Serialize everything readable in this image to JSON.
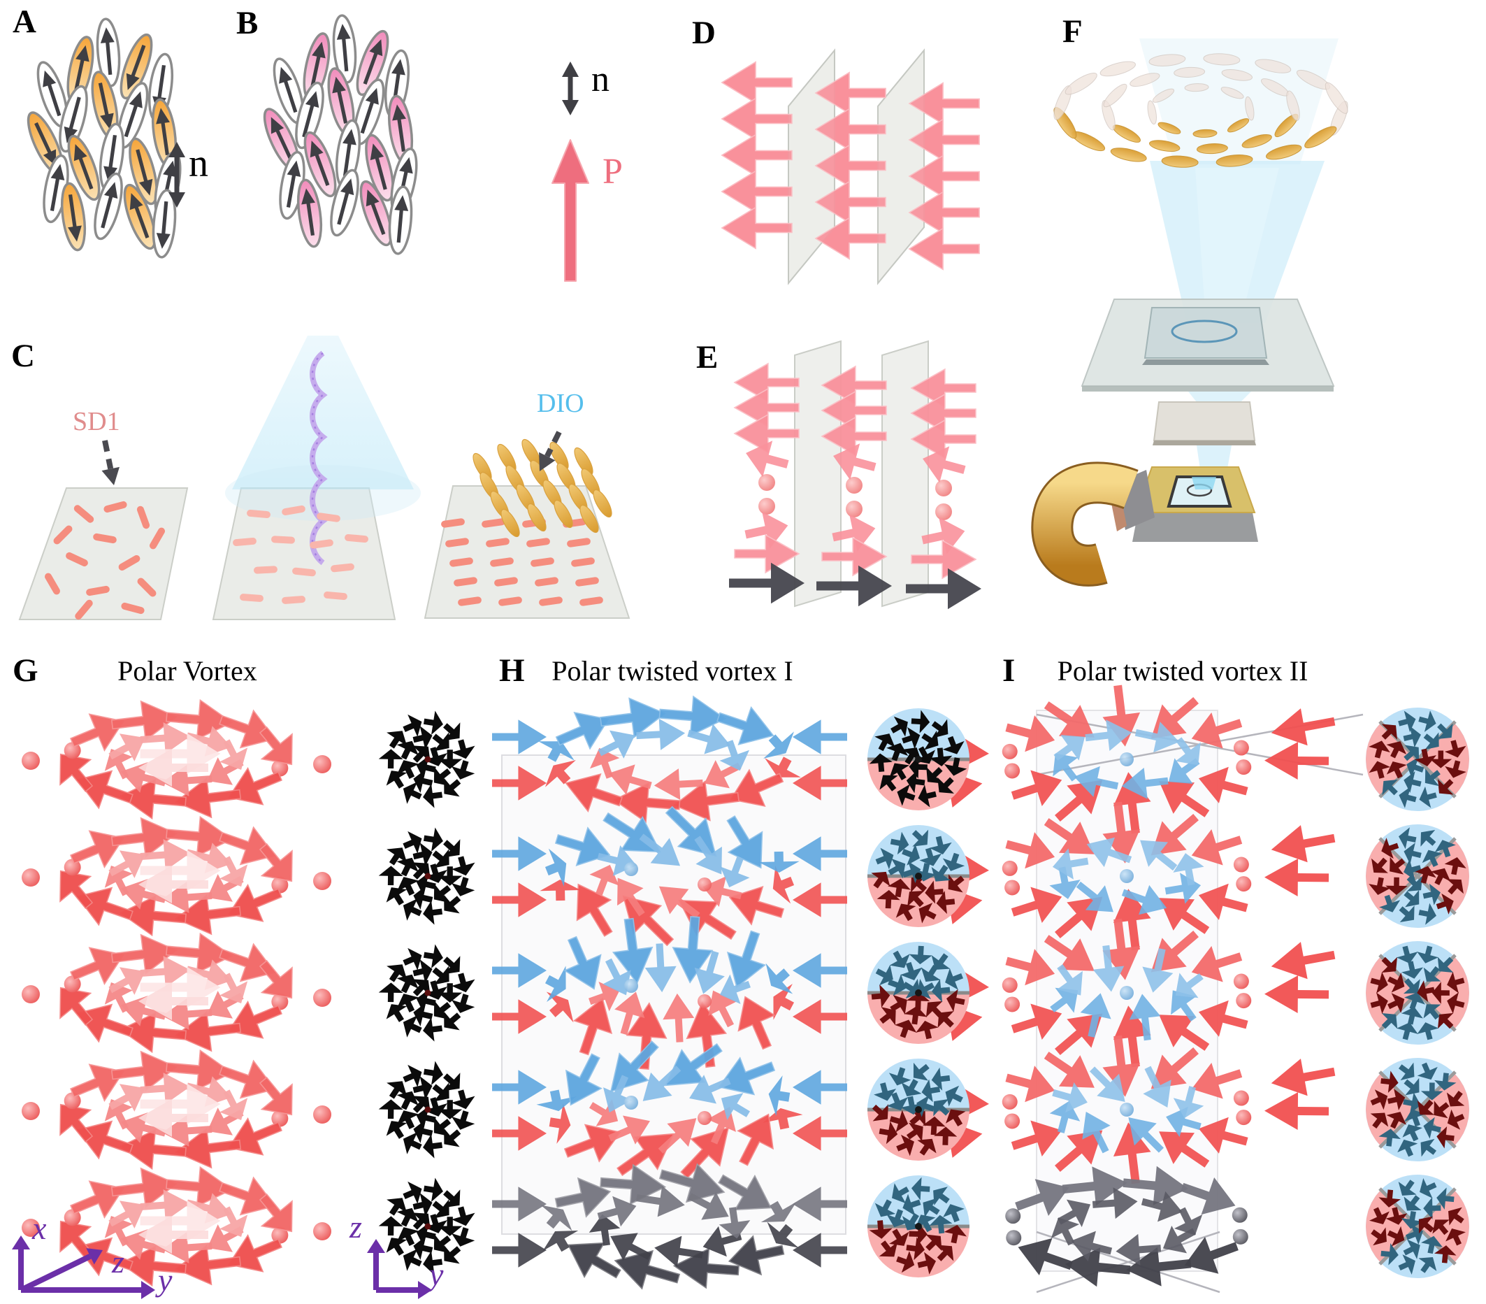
{
  "panels": {
    "A": {
      "label": "A",
      "director_label": "n"
    },
    "B": {
      "label": "B",
      "director_label": "n",
      "polarization_label": "P"
    },
    "C": {
      "label": "C",
      "coating_label": "SD1",
      "material_label": "DIO"
    },
    "D": {
      "label": "D"
    },
    "E": {
      "label": "E"
    },
    "F": {
      "label": "F"
    },
    "G": {
      "label": "G",
      "title": "Polar Vortex"
    },
    "H": {
      "label": "H",
      "title": "Polar twisted vortex I"
    },
    "I": {
      "label": "I",
      "title": "Polar twisted vortex II"
    }
  },
  "axes": {
    "xzy": {
      "x": "x",
      "z": "z",
      "y": "y"
    },
    "zy": {
      "z": "z",
      "y": "y"
    }
  },
  "colors": {
    "red_arrow": "#EF4B4A",
    "pink_arrow": "#F9919B",
    "blue_arrow": "#5EA6DF",
    "dark_arrow": "#46464E",
    "gray_arrow_light": "#75757F",
    "polarization": "#EE6E7E",
    "sd1_label": "#E08C8C",
    "dio_label": "#55BEEC",
    "axis_purple": "#6B2FA8",
    "mol_arrow": "#3F3F44",
    "gold": "#E9B95F",
    "salmon_rod": "#F58D7E",
    "plate": "#E9EBE7",
    "inset_blue_bg": "#BCE0F7",
    "inset_pink_bg": "#F9AEAE",
    "inset_divider": "#8A8A8A",
    "inset_arrow_black": "#0B0B0B",
    "inset_arrow_blue": "#31657F",
    "inset_arrow_red": "#6B0F0F",
    "beam": "#BFE8F7",
    "helix": "#C3A8EC"
  }
}
